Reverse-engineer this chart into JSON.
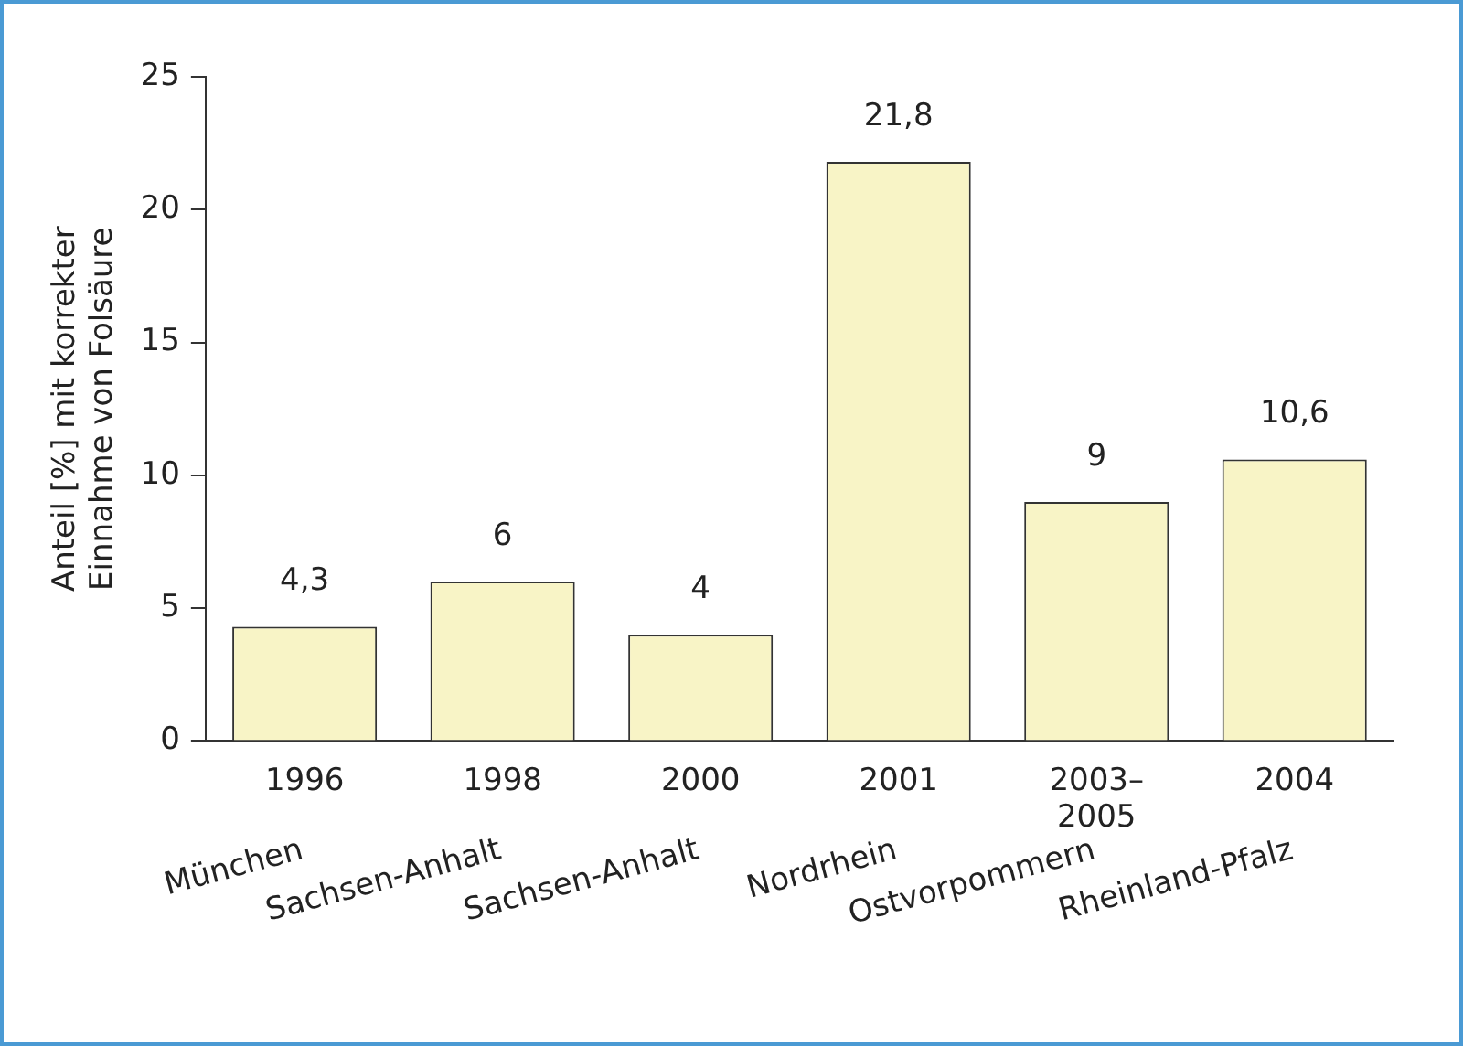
{
  "chart_data": {
    "type": "bar",
    "ylabel": "Anteil [%] mit korrekter\nEinnahme von Folsäure",
    "categories": [
      "1996",
      "1998",
      "2000",
      "2001",
      "2003–2005",
      "2004"
    ],
    "values": [
      4.3,
      6,
      4,
      21.8,
      9,
      10.6
    ],
    "value_labels": [
      "4,3",
      "6",
      "4",
      "21,8",
      "9",
      "10,6"
    ],
    "color": "#f8f4c6",
    "ylim": [
      0,
      25
    ],
    "yticks": [
      0,
      5,
      10,
      15,
      20,
      25
    ],
    "grid": false,
    "legend": false,
    "annotations": [
      "München",
      "Sachsen-Anhalt",
      "Sachsen-Anhalt",
      "Nordrhein",
      "Ostvorpommern",
      "Rheinland-Pfalz"
    ]
  }
}
